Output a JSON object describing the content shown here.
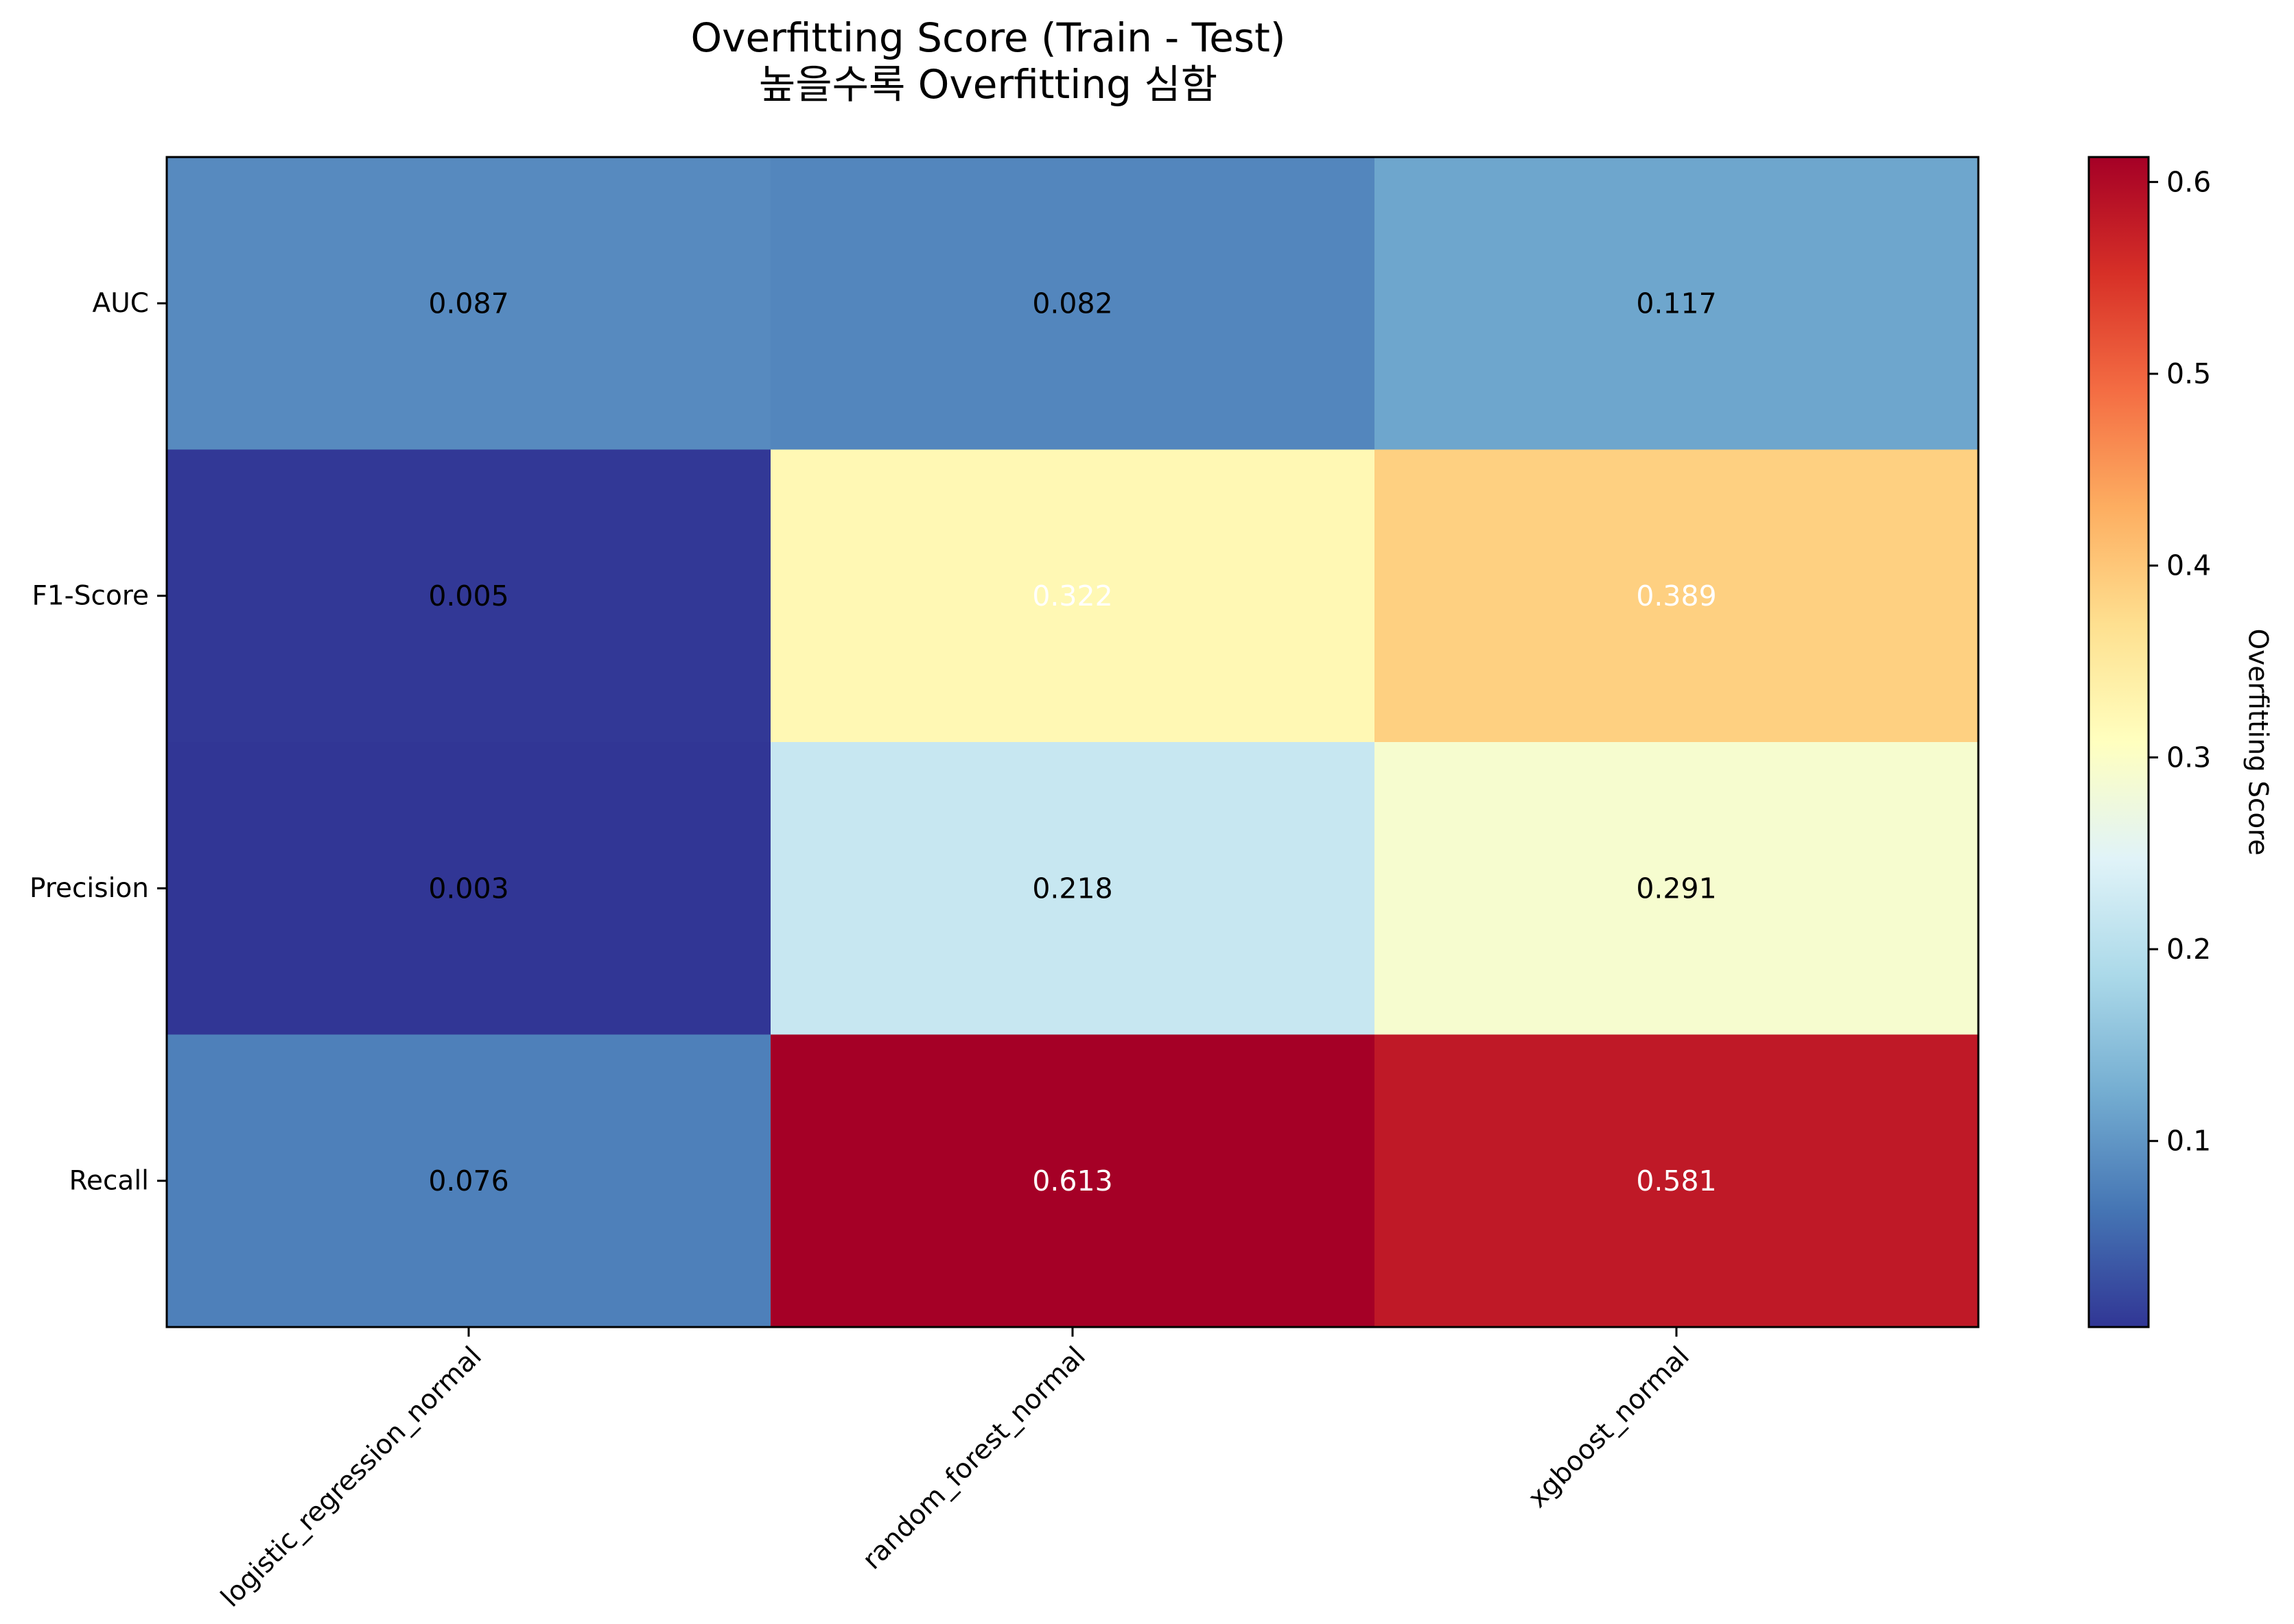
{
  "chart_data": {
    "type": "heatmap",
    "title": "Overfitting Score (Train - Test)",
    "subtitle": "높을수록 Overfitting 심함",
    "xlabel": "",
    "ylabel": "",
    "rows": [
      "AUC",
      "F1-Score",
      "Precision",
      "Recall"
    ],
    "columns": [
      "logistic_regression_normal",
      "random_forest_normal",
      "xgboost_normal"
    ],
    "values": [
      [
        0.087,
        0.082,
        0.117
      ],
      [
        0.005,
        0.322,
        0.389
      ],
      [
        0.003,
        0.218,
        0.291
      ],
      [
        0.076,
        0.613,
        0.581
      ]
    ],
    "value_labels": [
      [
        "0.087",
        "0.082",
        "0.117"
      ],
      [
        "0.005",
        "0.322",
        "0.389"
      ],
      [
        "0.003",
        "0.218",
        "0.291"
      ],
      [
        "0.076",
        "0.613",
        "0.581"
      ]
    ],
    "label_colors": [
      [
        "#000000",
        "#000000",
        "#000000"
      ],
      [
        "#000000",
        "#ffffff",
        "#ffffff"
      ],
      [
        "#000000",
        "#000000",
        "#000000"
      ],
      [
        "#000000",
        "#ffffff",
        "#ffffff"
      ]
    ],
    "colormap": "RdYlBu_r",
    "colormap_stops": [
      "#313695",
      "#4575b4",
      "#74add1",
      "#abd9e9",
      "#e0f3f8",
      "#ffffbf",
      "#fee090",
      "#fdae61",
      "#f46d43",
      "#d73027",
      "#a50026"
    ],
    "vmin": 0.003,
    "vmax": 0.613,
    "colorbar": {
      "label": "Overfitting Score",
      "ticks": [
        0.1,
        0.2,
        0.3,
        0.4,
        0.5,
        0.6
      ],
      "tick_labels": [
        "0.1",
        "0.2",
        "0.3",
        "0.4",
        "0.5",
        "0.6"
      ]
    },
    "grid": false,
    "x_tick_rotation": 45
  }
}
